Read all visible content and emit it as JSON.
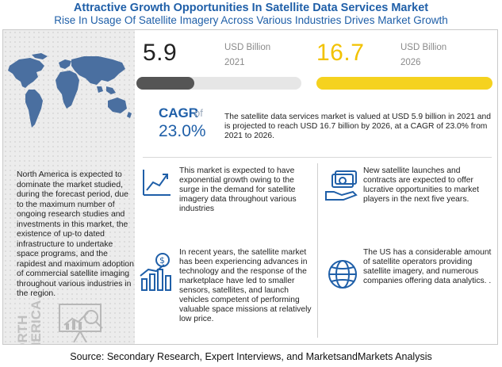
{
  "header": {
    "title": "Attractive Growth Opportunities In Satellite Data Services Market",
    "subtitle": "Rise In Usage Of Satellite Imagery Across Various Industries Drives Market Growth"
  },
  "left_panel": {
    "description": "North America is expected to dominate the market studied, during the forecast period, due to the maximum number of ongoing research studies and investments in this market, the existence of up-to dated infrastructure to undertake space programs, and the rapidest and maximum adoption of commercial satellite imaging throughout various industries in the region.",
    "region_line1": "NORTH",
    "region_line2": "AMERICA"
  },
  "values": {
    "v2021": {
      "value": "5.9",
      "unit": "USD Billion",
      "year": "2021",
      "fill_fraction": 0.35
    },
    "v2026": {
      "value": "16.7",
      "unit": "USD Billion",
      "year": "2026",
      "fill_fraction": 1.0
    }
  },
  "cagr": {
    "label": "CAGR",
    "of": "of",
    "value": "23.0%"
  },
  "summary": "The satellite data services market is valued at USD 5.9 billion in 2021 and is projected to reach USD 16.7 billion by 2026, at a CAGR of 23.0% from 2021 to 2026.",
  "insights": [
    {
      "text": "This market is expected to have exponential growth owing to the surge in the demand for satellite imagery data throughout various industries",
      "icon": "growth-chart-icon"
    },
    {
      "text": "New satellite launches and contracts are expected to offer lucrative opportunities to market players in the next five years.",
      "icon": "money-hand-icon"
    },
    {
      "text": "In recent years, the satellite market has been experiencing advances in technology and the response of the marketplace have led to smaller sensors, satellites, and launch vehicles competent of performing valuable space missions at relatively low price.",
      "icon": "dollar-bars-icon"
    },
    {
      "text": "The US has a considerable amount of satellite operators providing satellite imagery, and numerous companies offering data analytics. .",
      "icon": "globe-icon"
    }
  ],
  "colors": {
    "brand_blue": "#1f5fa8",
    "bar_2021": "#555555",
    "bar_2026": "#f5d21f",
    "muted_gray": "#8a8a8a"
  },
  "source": "Source: Secondary Research, Expert Interviews, and MarketsandMarkets Analysis"
}
